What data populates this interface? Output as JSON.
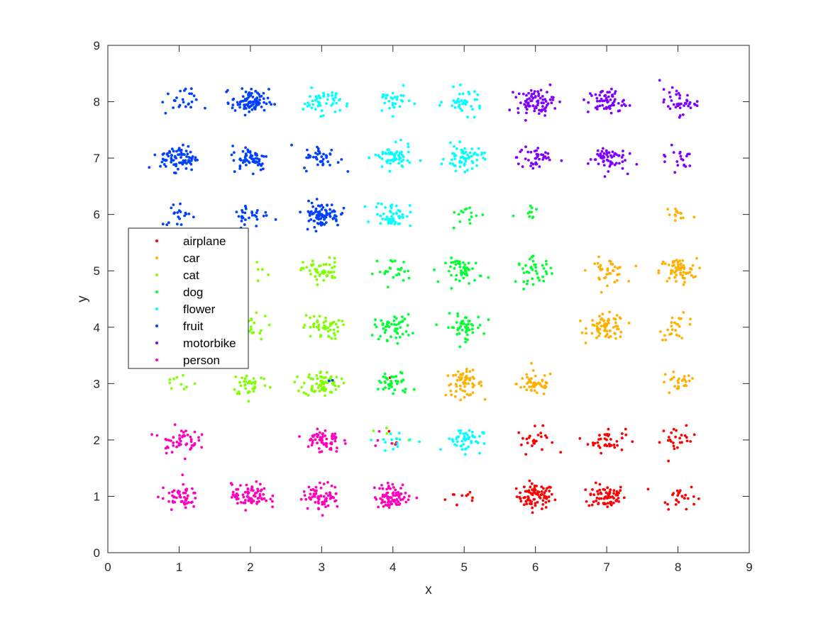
{
  "chart_data": {
    "type": "scatter",
    "xlabel": "x",
    "ylabel": "y",
    "xlim": [
      0,
      9
    ],
    "ylim": [
      0,
      9
    ],
    "xticks": [
      "0",
      "1",
      "2",
      "3",
      "4",
      "5",
      "6",
      "7",
      "8",
      "9"
    ],
    "yticks": [
      "0",
      "1",
      "2",
      "3",
      "4",
      "5",
      "6",
      "7",
      "8",
      "9"
    ],
    "grid": false,
    "legend_position": "middle-left",
    "series": [
      {
        "name": "airplane",
        "color": "#ff0000",
        "clusters": [
          {
            "x": 4,
            "y": 3,
            "n": 1
          },
          {
            "x": 4,
            "y": 2,
            "n": 2
          },
          {
            "x": 5,
            "y": 1,
            "n": 10
          },
          {
            "x": 6,
            "y": 1,
            "n": 80
          },
          {
            "x": 7,
            "y": 1,
            "n": 70
          },
          {
            "x": 8,
            "y": 1,
            "n": 25
          },
          {
            "x": 6,
            "y": 2,
            "n": 25
          },
          {
            "x": 7,
            "y": 2,
            "n": 40
          },
          {
            "x": 8,
            "y": 2,
            "n": 25
          }
        ]
      },
      {
        "name": "car",
        "color": "#ffb000",
        "clusters": [
          {
            "x": 5,
            "y": 3,
            "n": 60
          },
          {
            "x": 6,
            "y": 3,
            "n": 50
          },
          {
            "x": 8,
            "y": 3,
            "n": 25
          },
          {
            "x": 7,
            "y": 4,
            "n": 70
          },
          {
            "x": 8,
            "y": 4,
            "n": 25
          },
          {
            "x": 7,
            "y": 5,
            "n": 40
          },
          {
            "x": 8,
            "y": 5,
            "n": 60
          },
          {
            "x": 8,
            "y": 6,
            "n": 15
          }
        ]
      },
      {
        "name": "cat",
        "color": "#80ff00",
        "clusters": [
          {
            "x": 1,
            "y": 3,
            "n": 10
          },
          {
            "x": 2,
            "y": 3,
            "n": 40
          },
          {
            "x": 3,
            "y": 3,
            "n": 70
          },
          {
            "x": 2,
            "y": 4,
            "n": 20
          },
          {
            "x": 3,
            "y": 4,
            "n": 50
          },
          {
            "x": 2,
            "y": 5,
            "n": 8
          },
          {
            "x": 3,
            "y": 5,
            "n": 50
          },
          {
            "x": 4,
            "y": 2,
            "n": 6
          }
        ]
      },
      {
        "name": "dog",
        "color": "#00ff33",
        "clusters": [
          {
            "x": 4,
            "y": 3,
            "n": 40
          },
          {
            "x": 4,
            "y": 4,
            "n": 50
          },
          {
            "x": 5,
            "y": 4,
            "n": 50
          },
          {
            "x": 4,
            "y": 5,
            "n": 25
          },
          {
            "x": 5,
            "y": 5,
            "n": 50
          },
          {
            "x": 6,
            "y": 5,
            "n": 40
          },
          {
            "x": 5,
            "y": 6,
            "n": 15
          },
          {
            "x": 6,
            "y": 6,
            "n": 10
          }
        ]
      },
      {
        "name": "flower",
        "color": "#00ffff",
        "clusters": [
          {
            "x": 3,
            "y": 8,
            "n": 50
          },
          {
            "x": 4,
            "y": 8,
            "n": 30
          },
          {
            "x": 5,
            "y": 8,
            "n": 40
          },
          {
            "x": 4,
            "y": 7,
            "n": 60
          },
          {
            "x": 5,
            "y": 7,
            "n": 60
          },
          {
            "x": 4,
            "y": 6,
            "n": 50
          },
          {
            "x": 5,
            "y": 2,
            "n": 50
          },
          {
            "x": 4,
            "y": 2,
            "n": 15
          }
        ]
      },
      {
        "name": "fruit",
        "color": "#0040ff",
        "clusters": [
          {
            "x": 1,
            "y": 8,
            "n": 25
          },
          {
            "x": 2,
            "y": 8,
            "n": 90
          },
          {
            "x": 1,
            "y": 7,
            "n": 80
          },
          {
            "x": 2,
            "y": 7,
            "n": 60
          },
          {
            "x": 3,
            "y": 7,
            "n": 40
          },
          {
            "x": 1,
            "y": 6,
            "n": 20
          },
          {
            "x": 2,
            "y": 6,
            "n": 30
          },
          {
            "x": 3,
            "y": 6,
            "n": 90
          },
          {
            "x": 3,
            "y": 3,
            "n": 2
          }
        ]
      },
      {
        "name": "motorbike",
        "color": "#8000ff",
        "clusters": [
          {
            "x": 6,
            "y": 8,
            "n": 80
          },
          {
            "x": 7,
            "y": 8,
            "n": 60
          },
          {
            "x": 8,
            "y": 8,
            "n": 40
          },
          {
            "x": 6,
            "y": 7,
            "n": 40
          },
          {
            "x": 7,
            "y": 7,
            "n": 60
          },
          {
            "x": 8,
            "y": 7,
            "n": 20
          }
        ]
      },
      {
        "name": "person",
        "color": "#ff00bf",
        "clusters": [
          {
            "x": 1,
            "y": 1,
            "n": 50
          },
          {
            "x": 2,
            "y": 1,
            "n": 80
          },
          {
            "x": 3,
            "y": 1,
            "n": 70
          },
          {
            "x": 4,
            "y": 1,
            "n": 80
          },
          {
            "x": 1,
            "y": 2,
            "n": 50
          },
          {
            "x": 3,
            "y": 2,
            "n": 60
          },
          {
            "x": 4,
            "y": 2,
            "n": 5
          }
        ]
      }
    ]
  }
}
